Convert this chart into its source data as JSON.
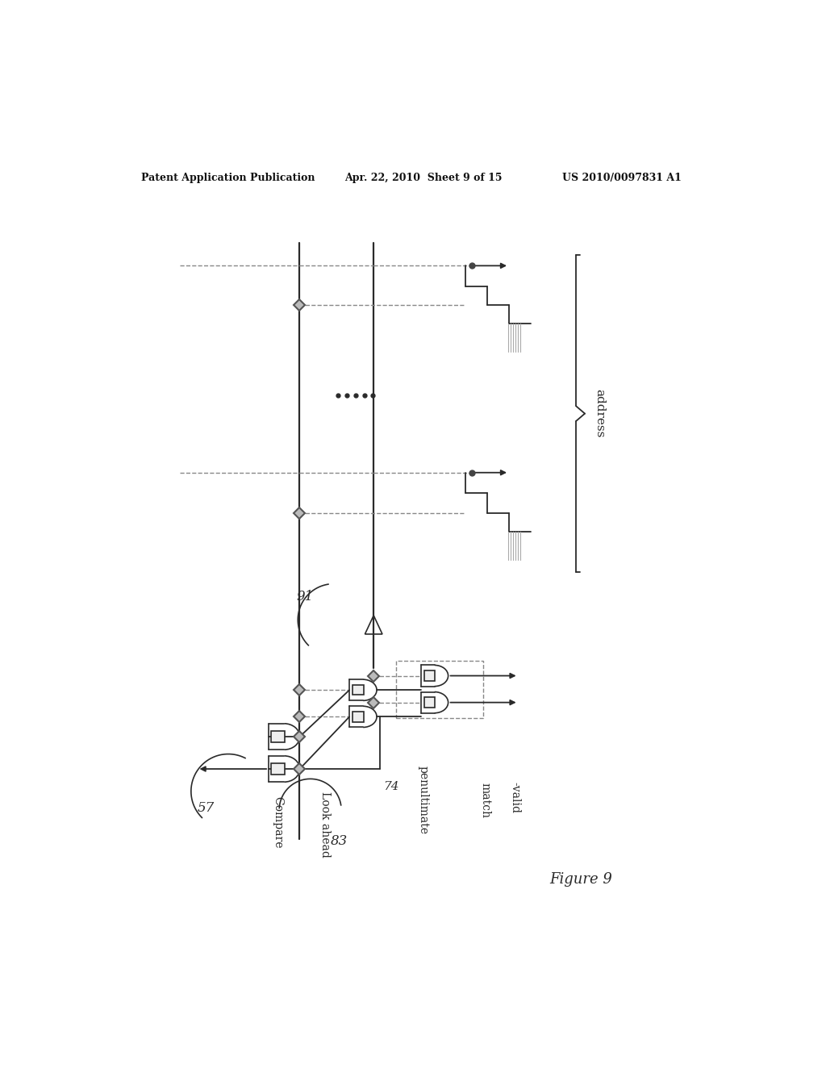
{
  "header_left": "Patent Application Publication",
  "header_mid": "Apr. 22, 2010  Sheet 9 of 15",
  "header_right": "US 2010/0097831 A1",
  "figure_label": "Figure 9",
  "bg_color": "#ffffff",
  "line_color": "#2a2a2a",
  "gray_color": "#888888",
  "light_gray": "#cccccc",
  "label_57": "57",
  "label_83": "83",
  "label_74": "74",
  "label_91": "91",
  "label_compare": "Compare",
  "label_lookahead": "Look ahead",
  "label_penultimate": "penultimate",
  "label_match": "match",
  "label_valid": "-valid",
  "label_address": "address"
}
